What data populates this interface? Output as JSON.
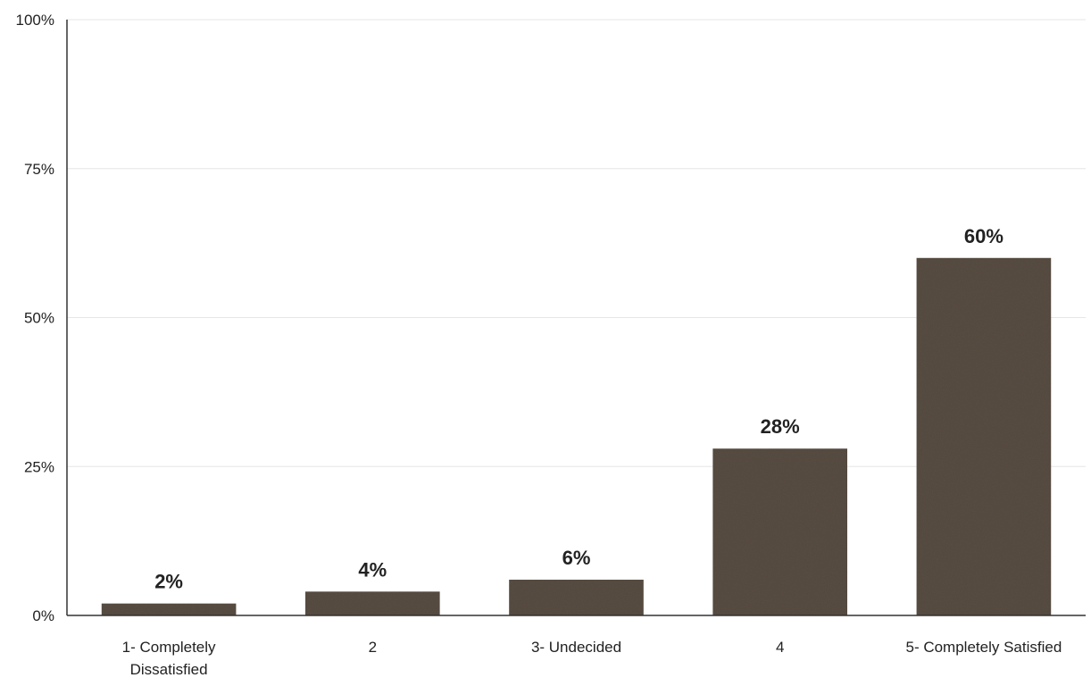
{
  "chart_data": {
    "type": "bar",
    "categories": [
      "1- Completely Dissatisfied",
      "2",
      "3- Undecided",
      "4",
      "5- Completely Satisfied"
    ],
    "values": [
      2,
      4,
      6,
      28,
      60
    ],
    "data_labels": [
      "2%",
      "4%",
      "6%",
      "28%",
      "60%"
    ],
    "yticks": [
      0,
      25,
      50,
      75,
      100
    ],
    "ytick_labels": [
      "0%",
      "25%",
      "50%",
      "75%",
      "100%"
    ],
    "ylim": [
      0,
      100
    ],
    "title": "",
    "xlabel": "",
    "ylabel": "",
    "grid": true,
    "legend": "none",
    "bar_color": "#5a4f45"
  }
}
